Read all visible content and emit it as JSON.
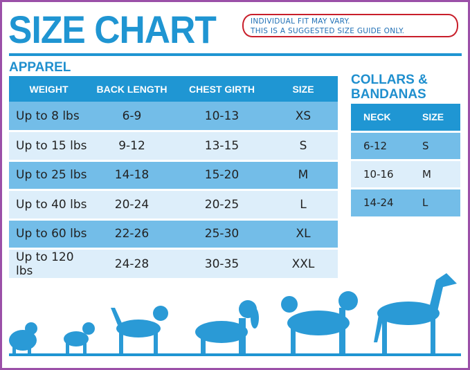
{
  "title": "SIZE CHART",
  "note": {
    "line1": "INDIVIDUAL FIT MAY VARY.",
    "line2": "THIS IS A SUGGESTED SIZE GUIDE ONLY."
  },
  "apparel": {
    "heading": "APPAREL",
    "columns": [
      "WEIGHT",
      "BACK LENGTH",
      "CHEST GIRTH",
      "SIZE"
    ],
    "rows": [
      [
        "Up to 8 lbs",
        "6-9",
        "10-13",
        "XS"
      ],
      [
        "Up to 15 lbs",
        "9-12",
        "13-15",
        "S"
      ],
      [
        "Up to 25 lbs",
        "14-18",
        "15-20",
        "M"
      ],
      [
        "Up to 40 lbs",
        "20-24",
        "20-25",
        "L"
      ],
      [
        "Up to 60 lbs",
        "22-26",
        "25-30",
        "XL"
      ],
      [
        "Up to 120 lbs",
        "24-28",
        "30-35",
        "XXL"
      ]
    ]
  },
  "collars": {
    "heading_line1": "COLLARS &",
    "heading_line2": "BANDANAS",
    "columns": [
      "NECK",
      "SIZE"
    ],
    "rows": [
      [
        "6-12",
        "S"
      ],
      [
        "10-16",
        "M"
      ],
      [
        "14-24",
        "L"
      ]
    ]
  },
  "colors": {
    "accent": "#1f96d3",
    "row_dark": "#73bde8",
    "row_light": "#ddeefa",
    "frame": "#9b4fa8",
    "note_border": "#c81e2a"
  },
  "icons": [
    "pomeranian-icon",
    "pug-icon",
    "beagle-icon",
    "spaniel-icon",
    "husky-icon",
    "great-dane-icon"
  ]
}
